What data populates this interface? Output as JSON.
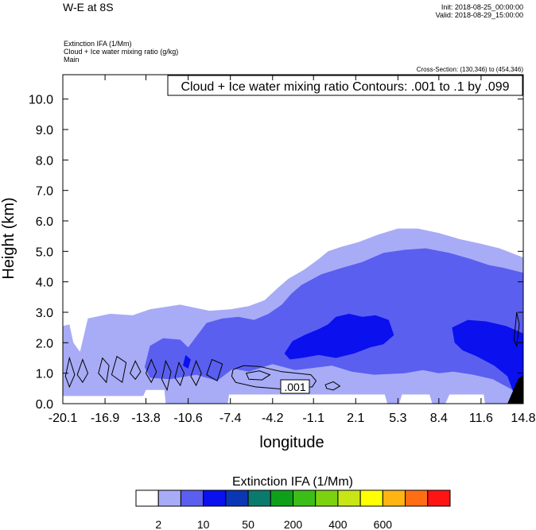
{
  "header": {
    "title": "W-E at 8S",
    "init": "Init: 2018-08-25_00:00:00",
    "valid": "Valid: 2018-08-29_15:00:00",
    "field_lines": [
      "Extinction IFA   (1/Mm)",
      "Cloud + Ice water mixing ratio   (g/kg)",
      "Main"
    ],
    "cross_section": "Cross-Section: (130,346) to (454,346)"
  },
  "colors": {
    "level_1": "#a8acf6",
    "level_2": "#5a5ff0",
    "level_3": "#0a10ee",
    "terrain": "#000000"
  },
  "chart_data": {
    "type": "heatmap",
    "title": "Cloud + Ice water mixing ratio Contours: .001 to .1 by .099",
    "xlabel": "longitude",
    "ylabel": "Height (km)",
    "x_ticks": [
      "-20.1",
      "-16.9",
      "-13.8",
      "-10.6",
      "-7.4",
      "-4.2",
      "-1.1",
      "2.1",
      "5.3",
      "8.4",
      "11.6",
      "14.8"
    ],
    "y_ticks": [
      "0.0",
      "1.0",
      "2.0",
      "3.0",
      "4.0",
      "5.0",
      "6.0",
      "7.0",
      "8.0",
      "9.0",
      "10.0"
    ],
    "xlim": [
      -20.1,
      14.8
    ],
    "ylim": [
      0,
      10.8
    ],
    "contour_label": ".001",
    "colorbar": {
      "title": "Extinction IFA  (1/Mm)",
      "colors": [
        "#ffffff",
        "#a8acf6",
        "#5a5ff0",
        "#0a10ee",
        "#0a37b4",
        "#0b7a6e",
        "#0fa019",
        "#3cbe19",
        "#7dd20f",
        "#c8e614",
        "#ffff00",
        "#ffb414",
        "#ff6e14",
        "#ff1414"
      ],
      "labels": [
        {
          "text": "2",
          "boundary": 1
        },
        {
          "text": "10",
          "boundary": 3
        },
        {
          "text": "50",
          "boundary": 5
        },
        {
          "text": "200",
          "boundary": 7
        },
        {
          "text": "400",
          "boundary": 9
        },
        {
          "text": "600",
          "boundary": 11
        }
      ]
    },
    "regions": [
      {
        "name": "extinction-2-10",
        "level": 1,
        "points": [
          [
            -20.1,
            0.25
          ],
          [
            -20.1,
            2.55
          ],
          [
            -19.6,
            2.6
          ],
          [
            -19.3,
            2.0
          ],
          [
            -18.8,
            1.7
          ],
          [
            -18.2,
            2.8
          ],
          [
            -16.5,
            2.95
          ],
          [
            -14.8,
            2.9
          ],
          [
            -13.5,
            3.1
          ],
          [
            -11.2,
            3.25
          ],
          [
            -9.0,
            3.05
          ],
          [
            -7.4,
            3.1
          ],
          [
            -6.0,
            3.2
          ],
          [
            -4.8,
            3.4
          ],
          [
            -3.8,
            3.8
          ],
          [
            -3.0,
            4.1
          ],
          [
            -1.8,
            4.4
          ],
          [
            -0.7,
            4.75
          ],
          [
            0.0,
            5.0
          ],
          [
            1.0,
            5.15
          ],
          [
            2.3,
            5.3
          ],
          [
            3.8,
            5.55
          ],
          [
            5.3,
            5.75
          ],
          [
            6.8,
            5.75
          ],
          [
            8.4,
            5.6
          ],
          [
            10.0,
            5.4
          ],
          [
            11.6,
            5.25
          ],
          [
            13.0,
            5.1
          ],
          [
            14.2,
            4.9
          ],
          [
            14.8,
            4.8
          ],
          [
            14.8,
            0.0
          ],
          [
            11.9,
            0.0
          ],
          [
            11.8,
            0.3
          ],
          [
            9.2,
            0.3
          ],
          [
            8.9,
            0.0
          ],
          [
            7.9,
            0.0
          ],
          [
            7.7,
            0.3
          ],
          [
            5.6,
            0.3
          ],
          [
            5.4,
            0.0
          ],
          [
            4.5,
            0.0
          ],
          [
            4.3,
            0.3
          ],
          [
            -7.5,
            0.3
          ],
          [
            -7.6,
            0.0
          ],
          [
            -12.3,
            0.0
          ],
          [
            -12.4,
            0.45
          ],
          [
            -13.8,
            0.45
          ],
          [
            -14.0,
            0.25
          ]
        ]
      },
      {
        "name": "extinction-10-50",
        "level": 2,
        "points": [
          [
            -13.9,
            1.2
          ],
          [
            -13.5,
            1.9
          ],
          [
            -12.5,
            2.15
          ],
          [
            -11.2,
            2.1
          ],
          [
            -10.6,
            1.85
          ],
          [
            -10.0,
            2.2
          ],
          [
            -9.2,
            2.65
          ],
          [
            -8.0,
            2.8
          ],
          [
            -6.8,
            2.85
          ],
          [
            -5.6,
            2.75
          ],
          [
            -4.5,
            2.95
          ],
          [
            -3.5,
            3.25
          ],
          [
            -2.8,
            3.6
          ],
          [
            -2.0,
            3.9
          ],
          [
            -0.5,
            4.25
          ],
          [
            1.0,
            4.45
          ],
          [
            2.6,
            4.65
          ],
          [
            4.2,
            4.95
          ],
          [
            5.8,
            5.05
          ],
          [
            7.4,
            5.1
          ],
          [
            9.2,
            4.95
          ],
          [
            10.8,
            4.75
          ],
          [
            12.2,
            4.55
          ],
          [
            13.4,
            4.45
          ],
          [
            14.3,
            4.35
          ],
          [
            14.8,
            4.3
          ],
          [
            14.8,
            0.5
          ],
          [
            14.0,
            0.45
          ],
          [
            12.5,
            0.8
          ],
          [
            11.0,
            0.95
          ],
          [
            9.5,
            1.05
          ],
          [
            8.4,
            1.0
          ],
          [
            7.2,
            1.1
          ],
          [
            5.8,
            1.0
          ],
          [
            3.5,
            0.95
          ],
          [
            1.8,
            1.05
          ],
          [
            0.3,
            1.25
          ],
          [
            -2.5,
            1.1
          ],
          [
            -4.2,
            1.3
          ],
          [
            -6.0,
            1.05
          ],
          [
            -7.2,
            1.15
          ],
          [
            -8.4,
            0.75
          ],
          [
            -10.0,
            0.95
          ],
          [
            -12.0,
            0.8
          ],
          [
            -13.5,
            0.85
          ]
        ]
      },
      {
        "name": "extinction-10-50-left-blob",
        "level": 2,
        "points": [
          [
            -12.7,
            1.05
          ],
          [
            -12.4,
            1.4
          ],
          [
            -11.9,
            1.55
          ],
          [
            -11.5,
            1.4
          ],
          [
            -11.4,
            1.0
          ],
          [
            -12.0,
            0.85
          ]
        ]
      },
      {
        "name": "extinction-50-200-upper",
        "level": 3,
        "points": [
          [
            -3.3,
            1.65
          ],
          [
            -2.7,
            2.05
          ],
          [
            -1.8,
            2.25
          ],
          [
            -0.7,
            2.45
          ],
          [
            0.0,
            2.6
          ],
          [
            0.6,
            2.85
          ],
          [
            1.6,
            2.95
          ],
          [
            2.6,
            2.85
          ],
          [
            3.6,
            2.9
          ],
          [
            4.6,
            2.75
          ],
          [
            5.0,
            2.25
          ],
          [
            4.2,
            1.95
          ],
          [
            3.2,
            1.85
          ],
          [
            2.0,
            1.65
          ],
          [
            0.6,
            1.5
          ],
          [
            -0.7,
            1.6
          ],
          [
            -2.0,
            1.5
          ],
          [
            -2.9,
            1.45
          ]
        ]
      },
      {
        "name": "extinction-50-200-right",
        "level": 3,
        "points": [
          [
            9.4,
            2.5
          ],
          [
            10.6,
            2.75
          ],
          [
            12.0,
            2.7
          ],
          [
            13.5,
            2.55
          ],
          [
            14.3,
            2.4
          ],
          [
            14.8,
            2.3
          ],
          [
            14.8,
            0.1
          ],
          [
            14.2,
            0.2
          ],
          [
            13.6,
            0.9
          ],
          [
            12.6,
            1.25
          ],
          [
            11.3,
            1.55
          ],
          [
            10.2,
            1.75
          ],
          [
            9.6,
            2.0
          ]
        ]
      },
      {
        "name": "extinction-50-200-small",
        "level": 3,
        "points": [
          [
            -11.0,
            1.25
          ],
          [
            -10.8,
            1.6
          ],
          [
            -10.4,
            1.45
          ],
          [
            -10.6,
            1.15
          ]
        ]
      },
      {
        "name": "terrain",
        "level": "terrain",
        "points": [
          [
            13.6,
            0.0
          ],
          [
            14.4,
            0.8
          ],
          [
            14.8,
            0.95
          ],
          [
            14.8,
            0.0
          ]
        ]
      }
    ],
    "contours": [
      {
        "name": "contour-main",
        "points": [
          [
            -7.2,
            1.12
          ],
          [
            -6.4,
            1.25
          ],
          [
            -5.2,
            1.22
          ],
          [
            -3.5,
            1.05
          ],
          [
            -1.3,
            0.95
          ],
          [
            -0.9,
            0.75
          ],
          [
            -1.2,
            0.55
          ],
          [
            -3.5,
            0.48
          ],
          [
            -5.5,
            0.55
          ],
          [
            -7.0,
            0.7
          ],
          [
            -7.3,
            0.9
          ]
        ]
      },
      {
        "name": "contour-inner",
        "points": [
          [
            -6.2,
            1.0
          ],
          [
            -5.2,
            1.08
          ],
          [
            -4.4,
            0.95
          ],
          [
            -5.0,
            0.78
          ],
          [
            -6.0,
            0.8
          ]
        ]
      },
      {
        "name": "contour-right-small",
        "points": [
          [
            -0.2,
            0.62
          ],
          [
            0.4,
            0.72
          ],
          [
            0.9,
            0.58
          ],
          [
            0.4,
            0.45
          ],
          [
            -0.1,
            0.5
          ]
        ]
      },
      {
        "name": "contour-loop-1",
        "points": [
          [
            -19.9,
            0.9
          ],
          [
            -19.6,
            1.5
          ],
          [
            -19.2,
            0.95
          ],
          [
            -19.6,
            0.55
          ]
        ]
      },
      {
        "name": "contour-loop-2",
        "points": [
          [
            -19.0,
            0.95
          ],
          [
            -18.6,
            1.45
          ],
          [
            -18.2,
            1.0
          ],
          [
            -18.6,
            0.7
          ]
        ]
      },
      {
        "name": "contour-loop-3",
        "points": [
          [
            -17.4,
            1.0
          ],
          [
            -17.1,
            1.5
          ],
          [
            -16.6,
            1.25
          ],
          [
            -16.8,
            0.7
          ]
        ]
      },
      {
        "name": "contour-loop-4",
        "points": [
          [
            -16.4,
            0.95
          ],
          [
            -16.0,
            1.55
          ],
          [
            -15.3,
            1.35
          ],
          [
            -15.6,
            0.7
          ]
        ]
      },
      {
        "name": "contour-loop-5",
        "points": [
          [
            -15.0,
            1.0
          ],
          [
            -14.6,
            1.4
          ],
          [
            -14.2,
            1.05
          ],
          [
            -14.6,
            0.8
          ]
        ]
      },
      {
        "name": "contour-loop-6",
        "points": [
          [
            -13.8,
            1.0
          ],
          [
            -13.4,
            1.45
          ],
          [
            -13.0,
            1.05
          ],
          [
            -13.4,
            0.7
          ]
        ]
      },
      {
        "name": "contour-loop-7",
        "points": [
          [
            -12.6,
            0.8
          ],
          [
            -12.3,
            1.4
          ],
          [
            -11.9,
            1.05
          ],
          [
            -12.2,
            0.45
          ]
        ]
      },
      {
        "name": "contour-loop-8",
        "points": [
          [
            -11.6,
            0.85
          ],
          [
            -11.3,
            1.35
          ],
          [
            -10.9,
            1.0
          ],
          [
            -11.2,
            0.6
          ]
        ]
      },
      {
        "name": "contour-loop-9",
        "points": [
          [
            -10.4,
            0.9
          ],
          [
            -10.0,
            1.4
          ],
          [
            -9.6,
            1.0
          ],
          [
            -10.0,
            0.6
          ]
        ]
      },
      {
        "name": "contour-loop-10",
        "points": [
          [
            -9.2,
            0.95
          ],
          [
            -8.8,
            1.45
          ],
          [
            -8.0,
            1.3
          ],
          [
            -8.4,
            0.75
          ]
        ]
      },
      {
        "name": "contour-loop-11",
        "points": [
          [
            14.1,
            2.1
          ],
          [
            14.3,
            3.0
          ],
          [
            14.5,
            2.6
          ],
          [
            14.3,
            1.9
          ]
        ]
      }
    ]
  }
}
